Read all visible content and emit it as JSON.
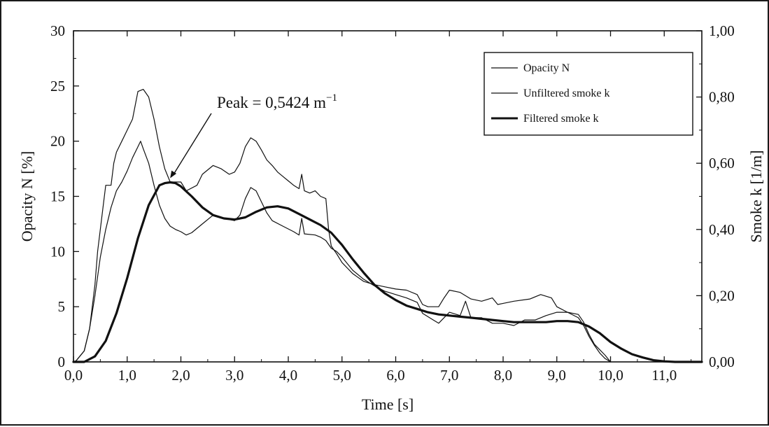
{
  "chart_data": {
    "type": "line",
    "xlabel": "Time [s]",
    "ylabel": "Opacity N [%]",
    "y2label": "Smoke k [1/m]",
    "xlim": [
      0,
      11.7
    ],
    "ylim": [
      0,
      30
    ],
    "y2lim": [
      0,
      1.0
    ],
    "x_ticks": [
      "0,0",
      "1,0",
      "2,0",
      "3,0",
      "4,0",
      "5,0",
      "6,0",
      "7,0",
      "8,0",
      "9,0",
      "10,0",
      "11,0"
    ],
    "y_ticks": [
      "0",
      "5",
      "10",
      "15",
      "20",
      "25",
      "30"
    ],
    "y2_ticks": [
      "0,00",
      "0,20",
      "0,40",
      "0,60",
      "0,80",
      "1,00"
    ],
    "grid": false,
    "legend_position": "top-right",
    "legend": [
      "Opacity N",
      "Unfiltered smoke k",
      "Filtered smoke k"
    ],
    "annotation": {
      "text": "Peak = 0,5424 m",
      "superscript": "−1",
      "target": [
        1.8,
        0.5424
      ]
    },
    "series": [
      {
        "name": "Opacity N",
        "axis": "left",
        "style": "thin",
        "points": [
          [
            0.0,
            0
          ],
          [
            0.05,
            0.1
          ],
          [
            0.2,
            1
          ],
          [
            0.3,
            3
          ],
          [
            0.4,
            7
          ],
          [
            0.45,
            10
          ],
          [
            0.55,
            14
          ],
          [
            0.6,
            16
          ],
          [
            0.7,
            16
          ],
          [
            0.75,
            18
          ],
          [
            0.8,
            19
          ],
          [
            0.9,
            20
          ],
          [
            1.0,
            21
          ],
          [
            1.1,
            22
          ],
          [
            1.2,
            24.5
          ],
          [
            1.3,
            24.7
          ],
          [
            1.4,
            24
          ],
          [
            1.5,
            22
          ],
          [
            1.6,
            19.5
          ],
          [
            1.7,
            17.5
          ],
          [
            1.8,
            16.3
          ],
          [
            2.0,
            16.3
          ],
          [
            2.1,
            15.5
          ],
          [
            2.3,
            16
          ],
          [
            2.4,
            17
          ],
          [
            2.6,
            17.8
          ],
          [
            2.75,
            17.5
          ],
          [
            2.9,
            17
          ],
          [
            3.0,
            17.2
          ],
          [
            3.1,
            18
          ],
          [
            3.2,
            19.5
          ],
          [
            3.3,
            20.3
          ],
          [
            3.4,
            20
          ],
          [
            3.5,
            19.2
          ],
          [
            3.6,
            18.3
          ],
          [
            3.7,
            17.8
          ],
          [
            3.8,
            17.2
          ],
          [
            3.9,
            16.8
          ],
          [
            4.0,
            16.4
          ],
          [
            4.1,
            16
          ],
          [
            4.2,
            15.7
          ],
          [
            4.25,
            17
          ],
          [
            4.3,
            15.5
          ],
          [
            4.4,
            15.3
          ],
          [
            4.5,
            15.5
          ],
          [
            4.6,
            15
          ],
          [
            4.7,
            14.8
          ],
          [
            4.75,
            12
          ],
          [
            4.8,
            10.5
          ],
          [
            4.9,
            9.8
          ],
          [
            5.0,
            9
          ],
          [
            5.1,
            8.5
          ],
          [
            5.2,
            8
          ],
          [
            5.4,
            7.3
          ],
          [
            5.6,
            7
          ],
          [
            5.8,
            6.8
          ],
          [
            6.0,
            6.6
          ],
          [
            6.2,
            6.5
          ],
          [
            6.4,
            6.1
          ],
          [
            6.5,
            5.2
          ],
          [
            6.6,
            5
          ],
          [
            6.8,
            5
          ],
          [
            6.9,
            5.8
          ],
          [
            7.0,
            6.5
          ],
          [
            7.2,
            6.3
          ],
          [
            7.4,
            5.7
          ],
          [
            7.6,
            5.5
          ],
          [
            7.8,
            5.8
          ],
          [
            7.9,
            5.2
          ],
          [
            8.0,
            5.3
          ],
          [
            8.2,
            5.5
          ],
          [
            8.5,
            5.7
          ],
          [
            8.7,
            6.1
          ],
          [
            8.9,
            5.8
          ],
          [
            9.0,
            5
          ],
          [
            9.2,
            4.5
          ],
          [
            9.4,
            4.3
          ],
          [
            9.5,
            3.6
          ],
          [
            9.6,
            2.5
          ],
          [
            9.7,
            1.6
          ],
          [
            9.8,
            1.1
          ],
          [
            9.9,
            0.6
          ],
          [
            10.0,
            0
          ]
        ]
      },
      {
        "name": "Unfiltered smoke k",
        "axis": "left",
        "style": "thin",
        "points": [
          [
            0.0,
            0
          ],
          [
            0.05,
            0.1
          ],
          [
            0.2,
            1
          ],
          [
            0.3,
            3
          ],
          [
            0.4,
            6
          ],
          [
            0.5,
            9.5
          ],
          [
            0.6,
            12
          ],
          [
            0.7,
            14
          ],
          [
            0.8,
            15.5
          ],
          [
            0.9,
            16.3
          ],
          [
            1.0,
            17.3
          ],
          [
            1.1,
            18.5
          ],
          [
            1.2,
            19.5
          ],
          [
            1.25,
            20
          ],
          [
            1.3,
            19.3
          ],
          [
            1.4,
            18
          ],
          [
            1.5,
            16
          ],
          [
            1.6,
            14.2
          ],
          [
            1.7,
            13
          ],
          [
            1.8,
            12.3
          ],
          [
            1.9,
            12
          ],
          [
            2.0,
            11.8
          ],
          [
            2.1,
            11.5
          ],
          [
            2.2,
            11.7
          ],
          [
            2.4,
            12.5
          ],
          [
            2.6,
            13.3
          ],
          [
            2.8,
            13
          ],
          [
            3.0,
            12.8
          ],
          [
            3.1,
            13.3
          ],
          [
            3.2,
            14.8
          ],
          [
            3.3,
            15.8
          ],
          [
            3.4,
            15.5
          ],
          [
            3.5,
            14.5
          ],
          [
            3.6,
            13.5
          ],
          [
            3.7,
            12.8
          ],
          [
            3.9,
            12.3
          ],
          [
            4.1,
            11.8
          ],
          [
            4.2,
            11.5
          ],
          [
            4.25,
            13
          ],
          [
            4.3,
            11.6
          ],
          [
            4.5,
            11.5
          ],
          [
            4.6,
            11.3
          ],
          [
            4.7,
            11
          ],
          [
            4.8,
            10.3
          ],
          [
            4.9,
            10
          ],
          [
            5.0,
            9.5
          ],
          [
            5.2,
            8.3
          ],
          [
            5.4,
            7.5
          ],
          [
            5.6,
            6.9
          ],
          [
            5.8,
            6.4
          ],
          [
            6.0,
            6.1
          ],
          [
            6.2,
            5.8
          ],
          [
            6.4,
            5.4
          ],
          [
            6.5,
            4.4
          ],
          [
            6.7,
            3.8
          ],
          [
            6.8,
            3.5
          ],
          [
            7.0,
            4.5
          ],
          [
            7.2,
            4.2
          ],
          [
            7.3,
            5.5
          ],
          [
            7.4,
            4
          ],
          [
            7.6,
            4
          ],
          [
            7.8,
            3.5
          ],
          [
            8.0,
            3.5
          ],
          [
            8.2,
            3.3
          ],
          [
            8.4,
            3.8
          ],
          [
            8.6,
            3.8
          ],
          [
            8.8,
            4.2
          ],
          [
            9.0,
            4.5
          ],
          [
            9.2,
            4.5
          ],
          [
            9.4,
            4
          ],
          [
            9.5,
            3.3
          ],
          [
            9.6,
            2.3
          ],
          [
            9.7,
            1.5
          ],
          [
            9.8,
            0.8
          ],
          [
            9.9,
            0.3
          ],
          [
            10.0,
            0
          ]
        ]
      },
      {
        "name": "Filtered smoke k",
        "axis": "left",
        "style": "thick",
        "points": [
          [
            0.0,
            0
          ],
          [
            0.2,
            0
          ],
          [
            0.4,
            0.5
          ],
          [
            0.6,
            1.9
          ],
          [
            0.8,
            4.4
          ],
          [
            1.0,
            7.6
          ],
          [
            1.2,
            11.2
          ],
          [
            1.4,
            14.2
          ],
          [
            1.6,
            16.0
          ],
          [
            1.7,
            16.2
          ],
          [
            1.8,
            16.27
          ],
          [
            1.9,
            16.2
          ],
          [
            2.0,
            15.9
          ],
          [
            2.2,
            15.0
          ],
          [
            2.4,
            14.0
          ],
          [
            2.6,
            13.3
          ],
          [
            2.8,
            13.0
          ],
          [
            3.0,
            12.9
          ],
          [
            3.2,
            13.1
          ],
          [
            3.4,
            13.6
          ],
          [
            3.6,
            14.0
          ],
          [
            3.8,
            14.1
          ],
          [
            4.0,
            13.9
          ],
          [
            4.2,
            13.4
          ],
          [
            4.4,
            12.9
          ],
          [
            4.6,
            12.4
          ],
          [
            4.8,
            11.7
          ],
          [
            5.0,
            10.6
          ],
          [
            5.2,
            9.3
          ],
          [
            5.4,
            8.1
          ],
          [
            5.6,
            7.0
          ],
          [
            5.8,
            6.2
          ],
          [
            6.0,
            5.6
          ],
          [
            6.2,
            5.1
          ],
          [
            6.4,
            4.8
          ],
          [
            6.6,
            4.5
          ],
          [
            6.8,
            4.3
          ],
          [
            7.0,
            4.2
          ],
          [
            7.2,
            4.1
          ],
          [
            7.4,
            4.0
          ],
          [
            7.6,
            3.9
          ],
          [
            7.8,
            3.8
          ],
          [
            8.0,
            3.7
          ],
          [
            8.2,
            3.6
          ],
          [
            8.4,
            3.6
          ],
          [
            8.6,
            3.6
          ],
          [
            8.8,
            3.6
          ],
          [
            9.0,
            3.7
          ],
          [
            9.2,
            3.7
          ],
          [
            9.4,
            3.6
          ],
          [
            9.6,
            3.2
          ],
          [
            9.8,
            2.6
          ],
          [
            10.0,
            1.8
          ],
          [
            10.2,
            1.2
          ],
          [
            10.4,
            0.7
          ],
          [
            10.6,
            0.4
          ],
          [
            10.8,
            0.15
          ],
          [
            11.0,
            0.05
          ],
          [
            11.2,
            0
          ],
          [
            11.7,
            0
          ]
        ]
      }
    ]
  }
}
